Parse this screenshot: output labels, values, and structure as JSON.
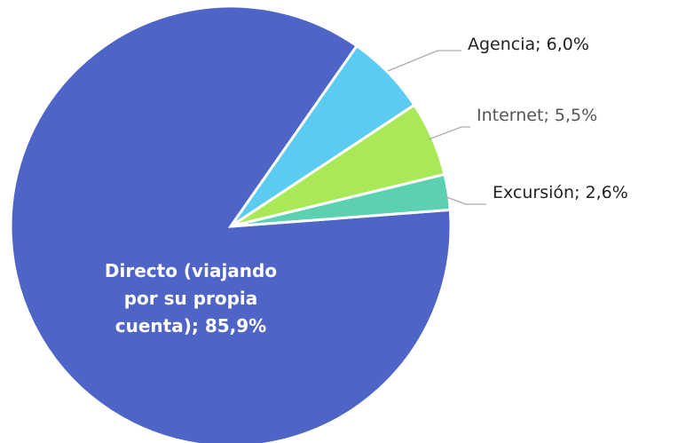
{
  "chart_data": {
    "type": "pie",
    "categories": [
      "Directo (viajando por su propia cuenta)",
      "Agencia",
      "Internet",
      "Excursión"
    ],
    "values": [
      85.9,
      6.0,
      5.5,
      2.6
    ],
    "value_labels": [
      "85,9%",
      "6,0%",
      "5,5%",
      "2,6%"
    ],
    "label_separator": "; ",
    "colors": [
      "#4f64c7",
      "#5ccbf2",
      "#a9e957",
      "#5cd1b2"
    ]
  }
}
